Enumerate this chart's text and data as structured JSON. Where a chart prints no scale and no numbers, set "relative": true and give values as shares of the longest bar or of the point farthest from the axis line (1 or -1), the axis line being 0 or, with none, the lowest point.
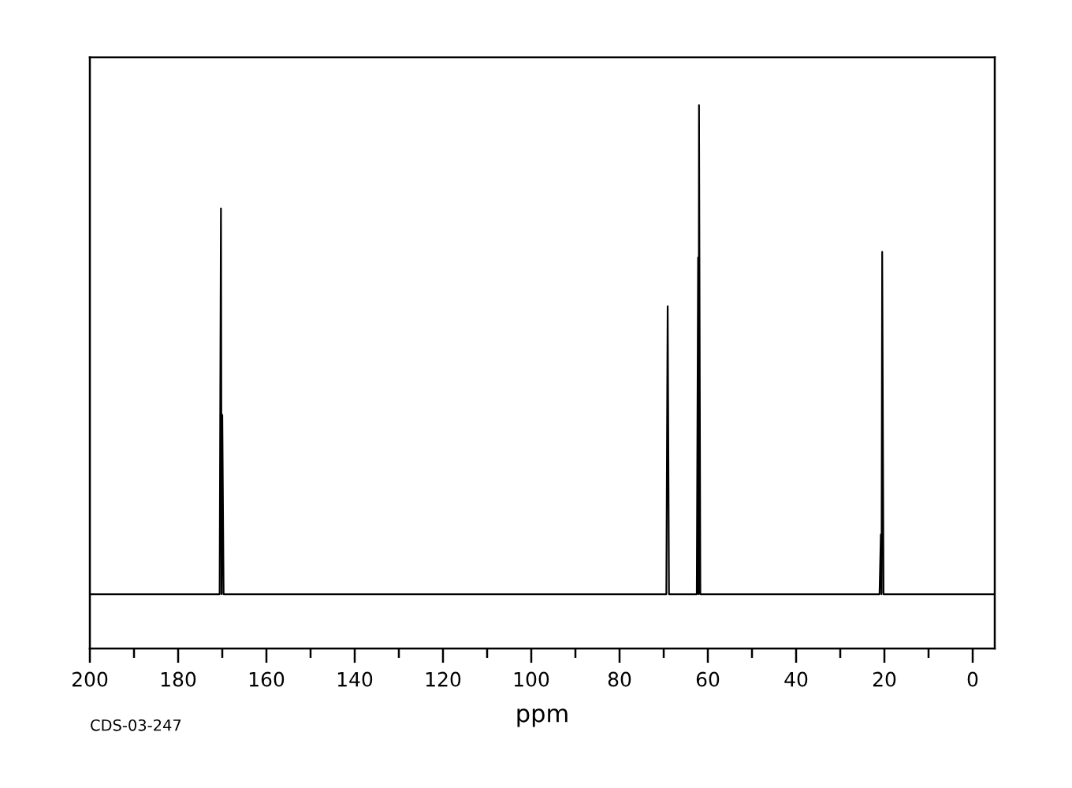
{
  "chart_data": {
    "type": "line",
    "relative": true,
    "xlabel": "ppm",
    "annotations": [
      "CDS-03-247"
    ],
    "xlim": [
      200,
      -5
    ],
    "xticks": [
      200,
      {
        "value": 190,
        "label": null
      },
      180,
      {
        "value": 170,
        "label": null
      },
      160,
      {
        "value": 150,
        "label": null
      },
      140,
      {
        "value": 130,
        "label": null
      },
      120,
      {
        "value": 110,
        "label": null
      },
      100,
      {
        "value": 90,
        "label": null
      },
      80,
      {
        "value": 70,
        "label": null
      },
      60,
      {
        "value": 50,
        "label": null
      },
      40,
      {
        "value": 30,
        "label": null
      },
      20,
      {
        "value": 10,
        "label": null
      },
      0
    ],
    "series": [
      {
        "color": "#000000",
        "x": [
          200,
          170.6,
          170.3,
          170.15,
          170.0,
          169.7,
          69.4,
          69.1,
          68.8,
          62.5,
          62.2,
          62.1,
          62.0,
          61.7,
          21.1,
          20.8,
          20.65,
          20.5,
          20.2,
          -5
        ],
        "values": [
          0.1,
          0.1,
          0.81,
          0.1,
          0.43,
          0.1,
          0.1,
          0.63,
          0.1,
          0.1,
          0.72,
          0.1,
          1.0,
          0.1,
          0.1,
          0.21,
          0.1,
          0.73,
          0.1,
          0.1
        ]
      }
    ]
  }
}
